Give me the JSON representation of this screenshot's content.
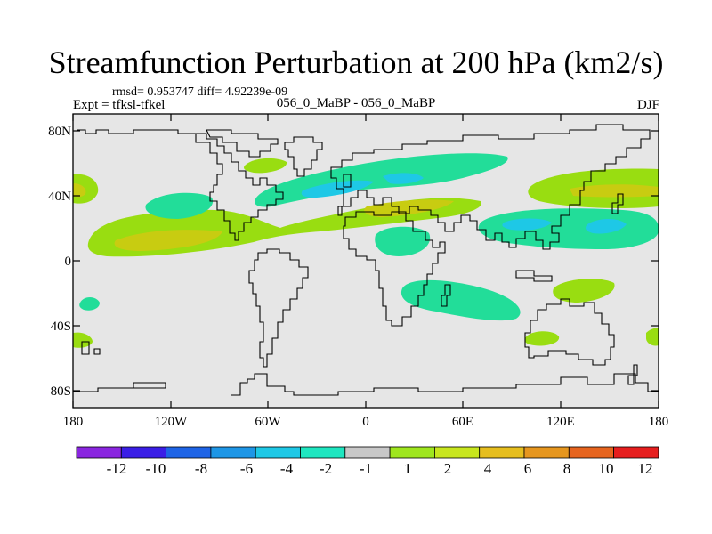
{
  "title": "Streamfunction Perturbation at 200 hPa (km2/s)",
  "stats": "rmsd= 0.953747 diff= 4.92239e-09",
  "left_label": "Expt = tfksl-tfkel",
  "center_label": "056_0_MaBP - 056_0_MaBP",
  "right_label": "DJF",
  "y_ticks": [
    "80N",
    "40N",
    "0",
    "40S",
    "80S"
  ],
  "x_ticks": [
    "180",
    "120W",
    "60W",
    "0",
    "60E",
    "120E",
    "180"
  ],
  "colorbar": {
    "colors": [
      "#8a26e0",
      "#3a1ee6",
      "#1e64e6",
      "#1e96e6",
      "#1ec8e6",
      "#1ee6c0",
      "#c8c8c8",
      "#9fe61e",
      "#c8e61e",
      "#e6be1e",
      "#e6961e",
      "#e6641e",
      "#e61e1e"
    ],
    "labels": [
      "-12",
      "-10",
      "-8",
      "-6",
      "-4",
      "-2",
      "-1",
      "1",
      "2",
      "4",
      "6",
      "8",
      "10",
      "12"
    ]
  },
  "legend_colors": {
    "neg_1_2": "#22dd99",
    "neg_2_4": "#1ec8e6",
    "pos_1_2": "#99dd11",
    "pos_2_4": "#c8cc11",
    "background": "#e6e6e6"
  }
}
